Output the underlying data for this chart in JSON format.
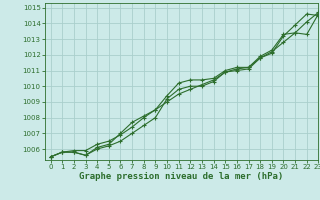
{
  "title": "Graphe pression niveau de la mer (hPa)",
  "bg_color": "#cceae8",
  "grid_color": "#aacfcc",
  "line_color": "#2d6e2d",
  "xlim": [
    -0.5,
    23
  ],
  "ylim": [
    1005.3,
    1015.3
  ],
  "xticks": [
    0,
    1,
    2,
    3,
    4,
    5,
    6,
    7,
    8,
    9,
    10,
    11,
    12,
    13,
    14,
    15,
    16,
    17,
    18,
    19,
    20,
    21,
    22,
    23
  ],
  "yticks": [
    1006,
    1007,
    1008,
    1009,
    1010,
    1011,
    1012,
    1013,
    1014,
    1015
  ],
  "line1_x": [
    0,
    1,
    2,
    3,
    4,
    5,
    6,
    7,
    8,
    9,
    10,
    11,
    12,
    13,
    14,
    15,
    16,
    17,
    18,
    19,
    20,
    21,
    22,
    23
  ],
  "line1_y": [
    1005.5,
    1005.8,
    1005.8,
    1005.6,
    1006.0,
    1006.2,
    1006.5,
    1007.0,
    1007.5,
    1008.0,
    1009.2,
    1009.8,
    1010.0,
    1010.0,
    1010.3,
    1010.9,
    1011.0,
    1011.1,
    1011.8,
    1012.1,
    1013.2,
    1013.9,
    1014.6,
    1014.5
  ],
  "line2_x": [
    0,
    1,
    2,
    3,
    4,
    5,
    6,
    7,
    8,
    9,
    10,
    11,
    12,
    13,
    14,
    15,
    16,
    17,
    18,
    19,
    20,
    21,
    22,
    23
  ],
  "line2_y": [
    1005.5,
    1005.8,
    1005.9,
    1005.9,
    1006.3,
    1006.5,
    1006.9,
    1007.4,
    1008.0,
    1008.5,
    1009.0,
    1009.5,
    1009.8,
    1010.1,
    1010.4,
    1010.9,
    1011.1,
    1011.2,
    1011.8,
    1012.2,
    1012.8,
    1013.4,
    1014.1,
    1014.7
  ],
  "line3_x": [
    0,
    1,
    2,
    3,
    4,
    5,
    6,
    7,
    8,
    9,
    10,
    11,
    12,
    13,
    14,
    15,
    16,
    17,
    18,
    19,
    20,
    21,
    22,
    23
  ],
  "line3_y": [
    1005.5,
    1005.8,
    1005.8,
    1005.6,
    1006.1,
    1006.3,
    1007.0,
    1007.7,
    1008.1,
    1008.5,
    1009.4,
    1010.2,
    1010.4,
    1010.4,
    1010.5,
    1011.0,
    1011.2,
    1011.2,
    1011.9,
    1012.3,
    1013.3,
    1013.4,
    1013.3,
    1014.6
  ],
  "marker": "+",
  "markersize": 3.5,
  "linewidth": 0.8,
  "title_fontsize": 6.5,
  "tick_fontsize": 5.0
}
